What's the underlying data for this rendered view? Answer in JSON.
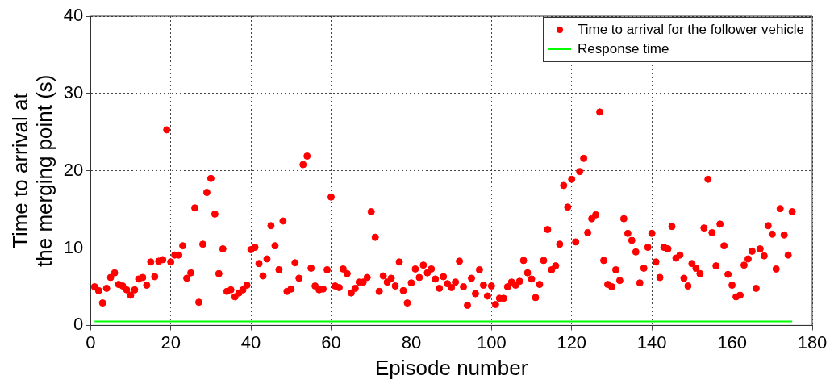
{
  "chart_data": {
    "type": "scatter",
    "xlabel": "Episode number",
    "ylabel": "Time to arrival at the merging point (s)",
    "xlim": [
      0,
      180
    ],
    "xticks": [
      0,
      20,
      40,
      60,
      80,
      100,
      120,
      140,
      160,
      180
    ],
    "ylim": [
      0,
      40
    ],
    "yticks": [
      0,
      10,
      20,
      30,
      40
    ],
    "grid": true,
    "legend": "top right",
    "marker": "circle",
    "series": [
      {
        "name": "Time to arrival for the follower vehicle",
        "color": "#ff0000",
        "x": [
          1,
          2,
          3,
          4,
          5,
          6,
          7,
          8,
          9,
          10,
          11,
          12,
          13,
          14,
          15,
          16,
          17,
          18,
          19,
          20,
          21,
          22,
          23,
          24,
          25,
          26,
          27,
          28,
          29,
          30,
          31,
          32,
          33,
          34,
          35,
          36,
          37,
          38,
          39,
          40,
          41,
          42,
          43,
          44,
          45,
          46,
          47,
          48,
          49,
          50,
          51,
          52,
          53,
          54,
          55,
          56,
          57,
          58,
          59,
          60,
          61,
          62,
          63,
          64,
          65,
          66,
          67,
          68,
          69,
          70,
          71,
          72,
          73,
          74,
          75,
          76,
          77,
          78,
          79,
          80,
          81,
          82,
          83,
          84,
          85,
          86,
          87,
          88,
          89,
          90,
          91,
          92,
          93,
          94,
          95,
          96,
          97,
          98,
          99,
          100,
          101,
          102,
          103,
          104,
          105,
          106,
          107,
          108,
          109,
          110,
          111,
          112,
          113,
          114,
          115,
          116,
          117,
          118,
          119,
          120,
          121,
          122,
          123,
          124,
          125,
          126,
          127,
          128,
          129,
          130,
          131,
          132,
          133,
          134,
          135,
          136,
          137,
          138,
          139,
          140,
          141,
          142,
          143,
          144,
          145,
          146,
          147,
          148,
          149,
          150,
          151,
          152,
          153,
          154,
          155,
          156,
          157,
          158,
          159,
          160,
          161,
          162,
          163,
          164,
          165,
          166,
          167,
          168,
          169,
          170,
          171,
          172,
          173,
          174,
          175
        ],
        "values": [
          5.0,
          4.5,
          2.9,
          4.8,
          6.2,
          6.8,
          5.3,
          5.1,
          4.6,
          3.9,
          4.6,
          6.0,
          6.2,
          5.2,
          8.2,
          6.3,
          8.3,
          8.5,
          25.3,
          8.2,
          9.1,
          9.1,
          10.3,
          6.1,
          6.8,
          15.2,
          3.0,
          10.5,
          17.2,
          19.0,
          14.4,
          6.7,
          9.9,
          4.4,
          4.6,
          3.7,
          4.2,
          4.6,
          5.2,
          9.8,
          10.1,
          8.0,
          6.4,
          8.6,
          12.9,
          10.3,
          7.2,
          13.5,
          4.4,
          4.7,
          8.1,
          6.1,
          20.8,
          21.9,
          7.4,
          5.1,
          4.6,
          4.7,
          7.2,
          16.6,
          5.1,
          4.9,
          7.3,
          6.7,
          4.2,
          4.8,
          5.6,
          5.6,
          6.2,
          14.7,
          11.4,
          4.4,
          6.4,
          5.6,
          6.1,
          5.1,
          8.2,
          4.5,
          2.9,
          5.5,
          7.3,
          6.2,
          7.8,
          6.8,
          7.3,
          6.0,
          4.8,
          6.3,
          5.4,
          4.9,
          5.6,
          8.3,
          5.0,
          2.6,
          6.1,
          4.1,
          7.2,
          5.2,
          3.8,
          5.1,
          2.7,
          3.5,
          3.5,
          5.0,
          5.6,
          5.2,
          5.7,
          8.4,
          6.8,
          6.0,
          3.6,
          5.3,
          8.4,
          12.4,
          7.2,
          7.7,
          10.5,
          18.1,
          15.3,
          18.9,
          10.8,
          19.9,
          21.6,
          12.0,
          13.8,
          14.3,
          27.6,
          8.4,
          5.3,
          5.0,
          7.2,
          5.8,
          13.8,
          11.9,
          11.0,
          9.5,
          5.5,
          7.4,
          10.1,
          11.9,
          8.2,
          6.2,
          10.1,
          9.9,
          12.8,
          8.7,
          9.1,
          6.1,
          5.1,
          8.0,
          7.4,
          6.7,
          12.6,
          18.9,
          12.0,
          7.7,
          13.1,
          10.3,
          6.6,
          5.2,
          3.7,
          3.9,
          7.8,
          8.6,
          9.6,
          4.8,
          9.9,
          9.0,
          12.9,
          11.8,
          7.3,
          15.1,
          11.7,
          9.1,
          14.7
        ]
      },
      {
        "name": "Response time",
        "type": "line",
        "color": "#00ff00",
        "marker": "none",
        "line_style": "solid",
        "x": [
          1,
          175
        ],
        "values": [
          0.5,
          0.5
        ]
      }
    ]
  }
}
